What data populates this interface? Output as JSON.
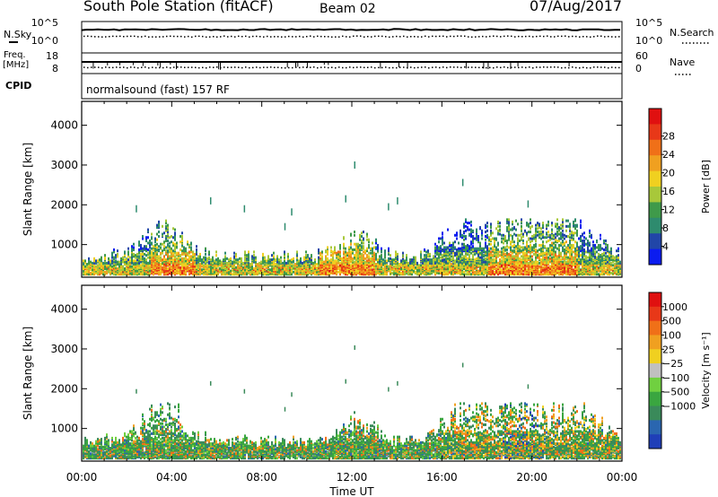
{
  "header": {
    "title": "South Pole Station (fitACF)",
    "beam": "Beam 02",
    "date": "07/Aug/2017"
  },
  "strip_labels": {
    "nsky": "N.Sky",
    "nsearch": "N.Search",
    "freq_top": "Freq.",
    "freq_unit": "[MHz]",
    "nave": "Nave",
    "cpid": "CPID",
    "cpid_value": "normalsound (fast) 157 RF",
    "noise_ticks": [
      "10^5",
      "10^0"
    ],
    "freq_ticks": [
      "18",
      "8"
    ],
    "nave_ticks": [
      "60",
      "0"
    ]
  },
  "chart_data": [
    {
      "type": "heatmap",
      "name": "power",
      "ylabel": "Slant Range [km]",
      "xlabel": "Time UT",
      "x_ticks": [
        "00:00",
        "04:00",
        "08:00",
        "12:00",
        "16:00",
        "20:00",
        "00:00"
      ],
      "y_ticks": [
        "1000",
        "2000",
        "3000",
        "4000"
      ],
      "ylim": [
        180,
        4600
      ],
      "colorbar": {
        "label": "Power [dB]",
        "tick_labels": [
          "4",
          "8",
          "12",
          "16",
          "20",
          "24",
          "28"
        ],
        "colors": [
          "#0b1cf0",
          "#2146a8",
          "#2e8b6e",
          "#3f9a4a",
          "#a8c83a",
          "#f0d020",
          "#f0a020",
          "#f07018",
          "#e83818",
          "#e01010"
        ]
      }
    },
    {
      "type": "heatmap",
      "name": "velocity",
      "ylabel": "Slant Range [km]",
      "xlabel": "Time UT",
      "x_ticks": [
        "00:00",
        "04:00",
        "08:00",
        "12:00",
        "16:00",
        "20:00",
        "00:00"
      ],
      "y_ticks": [
        "1000",
        "2000",
        "3000",
        "4000"
      ],
      "ylim": [
        180,
        4600
      ],
      "colorbar": {
        "label": "Velocity [m s⁻¹]",
        "tick_labels": [
          "1000",
          "500",
          "100",
          "25",
          "−25",
          "−100",
          "−500",
          "−1000"
        ],
        "colors": [
          "#1f3fb8",
          "#2a66b0",
          "#3a8a5a",
          "#3aa640",
          "#70d040",
          "#c0c0c0",
          "#f0d020",
          "#f0a020",
          "#f07018",
          "#e83818",
          "#e01010"
        ]
      }
    }
  ]
}
